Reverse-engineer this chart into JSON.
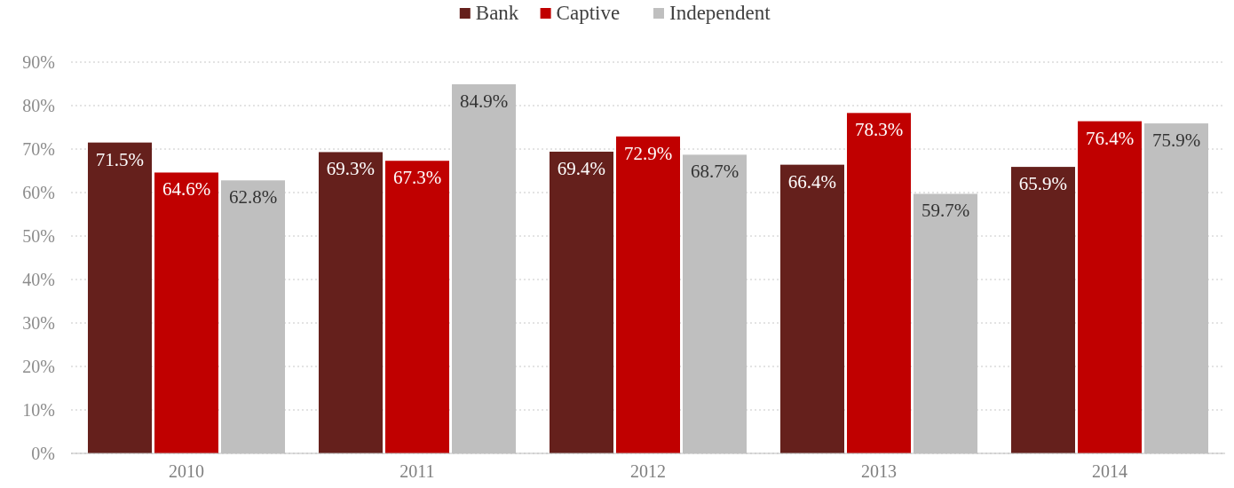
{
  "chart_data": {
    "type": "bar",
    "categories": [
      "2010",
      "2011",
      "2012",
      "2013",
      "2014"
    ],
    "series": [
      {
        "name": "Bank",
        "color": "#65201c",
        "values": [
          71.5,
          69.3,
          69.4,
          66.4,
          65.9
        ],
        "value_labels": [
          "71.5%",
          "69.3%",
          "69.4%",
          "66.4%",
          "65.9%"
        ]
      },
      {
        "name": "Captive",
        "color": "#c00000",
        "values": [
          64.6,
          67.3,
          72.9,
          78.3,
          76.4
        ],
        "value_labels": [
          "64.6%",
          "67.3%",
          "72.9%",
          "78.3%",
          "76.4%"
        ]
      },
      {
        "name": "Independent",
        "color": "#bfbfbf",
        "values": [
          62.8,
          84.9,
          68.7,
          59.7,
          75.9
        ],
        "value_labels": [
          "62.8%",
          "84.9%",
          "68.7%",
          "59.7%",
          "75.9%"
        ]
      }
    ],
    "ylim": [
      0,
      90
    ],
    "yticks": [
      {
        "value": 0,
        "label": "0%"
      },
      {
        "value": 10,
        "label": "10%"
      },
      {
        "value": 20,
        "label": "20%"
      },
      {
        "value": 30,
        "label": "30%"
      },
      {
        "value": 40,
        "label": "40%"
      },
      {
        "value": 50,
        "label": "50%"
      },
      {
        "value": 60,
        "label": "60%"
      },
      {
        "value": 70,
        "label": "70%"
      },
      {
        "value": 80,
        "label": "80%"
      },
      {
        "value": 90,
        "label": "90%"
      }
    ],
    "grid": "y",
    "legend": "top"
  }
}
